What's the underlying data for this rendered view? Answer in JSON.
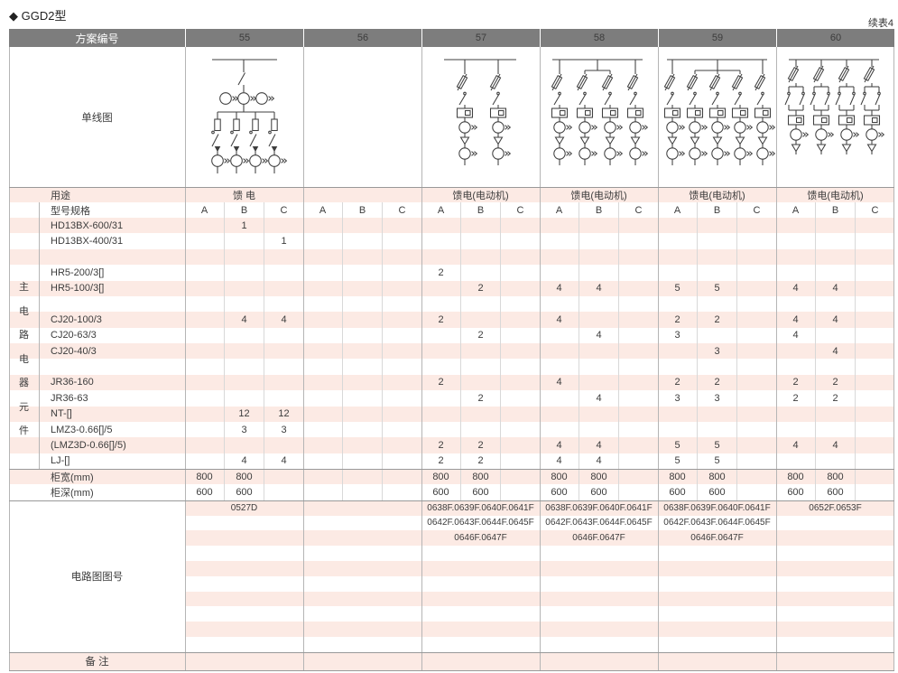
{
  "page": {
    "title": "◆ GGD2型",
    "continuation": "续表4"
  },
  "header": {
    "label": "方案编号",
    "schemes": [
      "55",
      "56",
      "57",
      "58",
      "59",
      "60"
    ]
  },
  "diagram_section": {
    "label": "单线图",
    "diagrams": [
      {
        "scheme": "55",
        "kind": "feeder",
        "branches": 4
      },
      {
        "scheme": "56",
        "kind": "none",
        "branches": 0
      },
      {
        "scheme": "57",
        "kind": "motor",
        "branches": 2
      },
      {
        "scheme": "58",
        "kind": "motor",
        "branches": 4
      },
      {
        "scheme": "59",
        "kind": "motor",
        "branches": 5
      },
      {
        "scheme": "60",
        "kind": "motor-reversing",
        "branches": 4
      }
    ]
  },
  "usage": {
    "label": "用途",
    "values": [
      "馈 电",
      "",
      "馈电(电动机)",
      "馈电(电动机)",
      "馈电(电动机)",
      "馈电(电动机)"
    ]
  },
  "spec": {
    "label": "型号规格",
    "sub_columns": [
      "A",
      "B",
      "C"
    ]
  },
  "side_label": "主电路电器元件",
  "components": {
    "rows": [
      {
        "label": "HD13BX-600/31",
        "cells": [
          [
            "",
            "1",
            ""
          ],
          [
            "",
            "",
            ""
          ],
          [
            "",
            "",
            ""
          ],
          [
            "",
            "",
            ""
          ],
          [
            "",
            "",
            ""
          ],
          [
            "",
            "",
            ""
          ]
        ]
      },
      {
        "label": "HD13BX-400/31",
        "cells": [
          [
            "",
            "",
            "1"
          ],
          [
            "",
            "",
            ""
          ],
          [
            "",
            "",
            ""
          ],
          [
            "",
            "",
            ""
          ],
          [
            "",
            "",
            ""
          ],
          [
            "",
            "",
            ""
          ]
        ]
      },
      {
        "label": "",
        "cells": [
          [
            "",
            "",
            ""
          ],
          [
            "",
            "",
            ""
          ],
          [
            "",
            "",
            ""
          ],
          [
            "",
            "",
            ""
          ],
          [
            "",
            "",
            ""
          ],
          [
            "",
            "",
            ""
          ]
        ]
      },
      {
        "label": "HR5-200/3[]",
        "cells": [
          [
            "",
            "",
            ""
          ],
          [
            "",
            "",
            ""
          ],
          [
            "2",
            "",
            ""
          ],
          [
            "",
            "",
            ""
          ],
          [
            "",
            "",
            ""
          ],
          [
            "",
            "",
            ""
          ]
        ]
      },
      {
        "label": "HR5-100/3[]",
        "cells": [
          [
            "",
            "",
            ""
          ],
          [
            "",
            "",
            ""
          ],
          [
            "",
            "2",
            ""
          ],
          [
            "4",
            "4",
            ""
          ],
          [
            "5",
            "5",
            ""
          ],
          [
            "4",
            "4",
            ""
          ]
        ]
      },
      {
        "label": "",
        "cells": [
          [
            "",
            "",
            ""
          ],
          [
            "",
            "",
            ""
          ],
          [
            "",
            "",
            ""
          ],
          [
            "",
            "",
            ""
          ],
          [
            "",
            "",
            ""
          ],
          [
            "",
            "",
            ""
          ]
        ]
      },
      {
        "label": "CJ20-100/3",
        "cells": [
          [
            "",
            "4",
            "4"
          ],
          [
            "",
            "",
            ""
          ],
          [
            "2",
            "",
            ""
          ],
          [
            "4",
            "",
            ""
          ],
          [
            "2",
            "2",
            ""
          ],
          [
            "4",
            "4",
            ""
          ]
        ]
      },
      {
        "label": "CJ20-63/3",
        "cells": [
          [
            "",
            "",
            ""
          ],
          [
            "",
            "",
            ""
          ],
          [
            "",
            "2",
            ""
          ],
          [
            "",
            "4",
            ""
          ],
          [
            "3",
            "",
            ""
          ],
          [
            "4",
            "",
            ""
          ]
        ]
      },
      {
        "label": "CJ20-40/3",
        "cells": [
          [
            "",
            "",
            ""
          ],
          [
            "",
            "",
            ""
          ],
          [
            "",
            "",
            ""
          ],
          [
            "",
            "",
            ""
          ],
          [
            "",
            "3",
            ""
          ],
          [
            "",
            "4",
            ""
          ]
        ]
      },
      {
        "label": "",
        "cells": [
          [
            "",
            "",
            ""
          ],
          [
            "",
            "",
            ""
          ],
          [
            "",
            "",
            ""
          ],
          [
            "",
            "",
            ""
          ],
          [
            "",
            "",
            ""
          ],
          [
            "",
            "",
            ""
          ]
        ]
      },
      {
        "label": "JR36-160",
        "cells": [
          [
            "",
            "",
            ""
          ],
          [
            "",
            "",
            ""
          ],
          [
            "2",
            "",
            ""
          ],
          [
            "4",
            "",
            ""
          ],
          [
            "2",
            "2",
            ""
          ],
          [
            "2",
            "2",
            ""
          ]
        ]
      },
      {
        "label": "JR36-63",
        "cells": [
          [
            "",
            "",
            ""
          ],
          [
            "",
            "",
            ""
          ],
          [
            "",
            "2",
            ""
          ],
          [
            "",
            "4",
            ""
          ],
          [
            "3",
            "3",
            ""
          ],
          [
            "2",
            "2",
            ""
          ]
        ]
      },
      {
        "label": "NT-[]",
        "cells": [
          [
            "",
            "12",
            "12"
          ],
          [
            "",
            "",
            ""
          ],
          [
            "",
            "",
            ""
          ],
          [
            "",
            "",
            ""
          ],
          [
            "",
            "",
            ""
          ],
          [
            "",
            "",
            ""
          ]
        ]
      },
      {
        "label": "LMZ3-0.66[]/5",
        "cells": [
          [
            "",
            "3",
            "3"
          ],
          [
            "",
            "",
            ""
          ],
          [
            "",
            "",
            ""
          ],
          [
            "",
            "",
            ""
          ],
          [
            "",
            "",
            ""
          ],
          [
            "",
            "",
            ""
          ]
        ]
      },
      {
        "label": "(LMZ3D-0.66[]/5)",
        "cells": [
          [
            "",
            "",
            ""
          ],
          [
            "",
            "",
            ""
          ],
          [
            "2",
            "2",
            ""
          ],
          [
            "4",
            "4",
            ""
          ],
          [
            "5",
            "5",
            ""
          ],
          [
            "4",
            "4",
            ""
          ]
        ]
      },
      {
        "label": "LJ-[]",
        "cells": [
          [
            "",
            "4",
            "4"
          ],
          [
            "",
            "",
            ""
          ],
          [
            "2",
            "2",
            ""
          ],
          [
            "4",
            "4",
            ""
          ],
          [
            "5",
            "5",
            ""
          ],
          [
            "",
            "",
            ""
          ]
        ]
      },
      {
        "label": "柜宽(mm)",
        "cells": [
          [
            "800",
            "800",
            ""
          ],
          [
            "",
            "",
            ""
          ],
          [
            "800",
            "800",
            ""
          ],
          [
            "800",
            "800",
            ""
          ],
          [
            "800",
            "800",
            ""
          ],
          [
            "800",
            "800",
            ""
          ]
        ]
      },
      {
        "label": "柜深(mm)",
        "cells": [
          [
            "600",
            "600",
            ""
          ],
          [
            "",
            "",
            ""
          ],
          [
            "600",
            "600",
            ""
          ],
          [
            "600",
            "600",
            ""
          ],
          [
            "600",
            "600",
            ""
          ],
          [
            "600",
            "600",
            ""
          ]
        ]
      }
    ]
  },
  "circuit": {
    "label": "电路图图号",
    "rows": [
      [
        "0527D",
        "",
        "0638F.0639F.0640F.0641F",
        "0638F.0639F.0640F.0641F",
        "0638F.0639F.0640F.0641F",
        "0652F.0653F"
      ],
      [
        "",
        "",
        "0642F.0643F.0644F.0645F",
        "0642F.0643F.0644F.0645F",
        "0642F.0643F.0644F.0645F",
        ""
      ],
      [
        "",
        "",
        "0646F.0647F",
        "0646F.0647F",
        "0646F.0647F",
        ""
      ],
      [
        "",
        "",
        "",
        "",
        "",
        ""
      ],
      [
        "",
        "",
        "",
        "",
        "",
        ""
      ],
      [
        "",
        "",
        "",
        "",
        "",
        ""
      ],
      [
        "",
        "",
        "",
        "",
        "",
        ""
      ],
      [
        "",
        "",
        "",
        "",
        "",
        ""
      ],
      [
        "",
        "",
        "",
        "",
        "",
        ""
      ],
      [
        "",
        "",
        "",
        "",
        "",
        ""
      ]
    ]
  },
  "remark": {
    "label": "备 注",
    "values": [
      "",
      "",
      "",
      "",
      "",
      ""
    ]
  },
  "colors": {
    "header_bg": "#7d7d7d",
    "header_text": "#ffffff",
    "stripe": "#fceae4",
    "line": "#999999",
    "diagram_stroke": "#3f3f3f"
  }
}
